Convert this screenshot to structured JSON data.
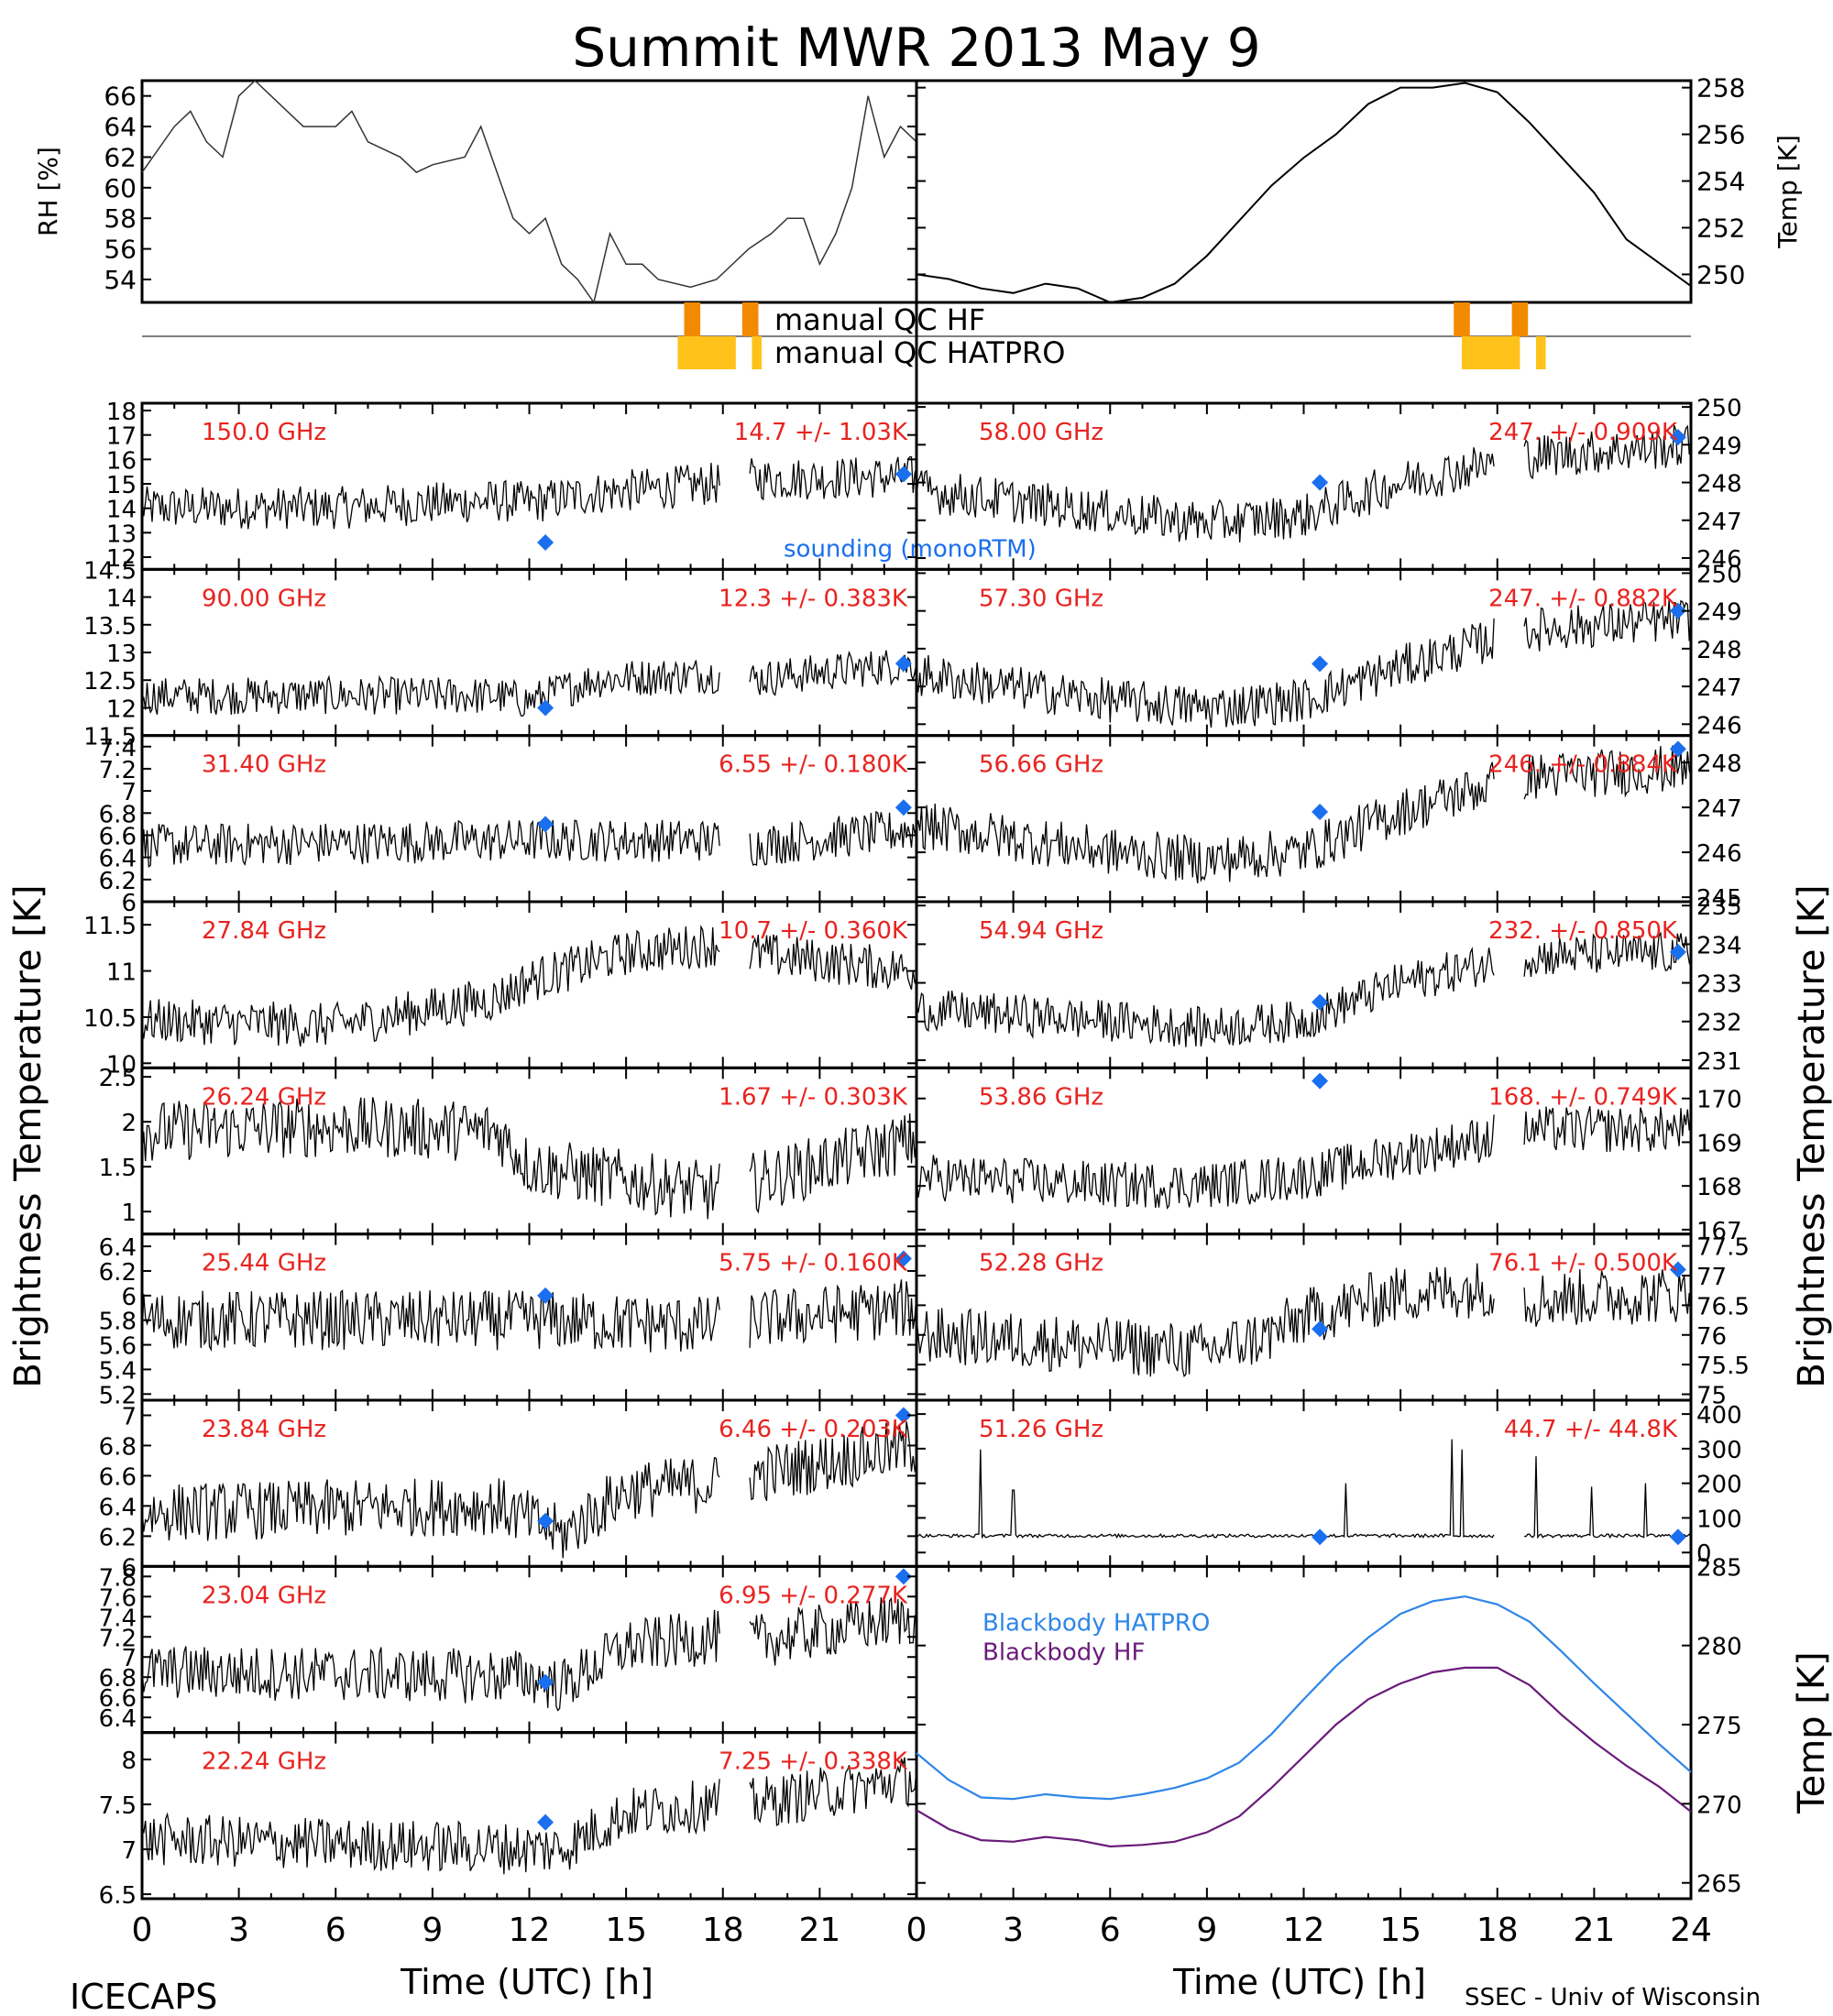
{
  "title": "Summit MWR 2013 May  9",
  "footer_left": "ICECAPS",
  "footer_right": "SSEC - Univ of Wisconsin",
  "colors": {
    "freq_label": "#e8231f",
    "sounding": "#1a6fee",
    "hatpro": "#2e86e8",
    "hf": "#6a1b7a",
    "qc_dark": "#f28a00",
    "qc_light": "#ffc21a"
  },
  "left_xaxis": {
    "label": "Time (UTC) [h]",
    "ticks": [
      0,
      3,
      6,
      9,
      12,
      15,
      18,
      21
    ],
    "range": [
      0,
      24
    ]
  },
  "right_xaxis": {
    "label": "Time (UTC) [h]",
    "ticks": [
      0,
      3,
      6,
      9,
      12,
      15,
      18,
      21,
      24
    ],
    "range": [
      0,
      24
    ]
  },
  "left_ylabel": "Brightness Temperature [K]",
  "right_ylabel": "Brightness Temperature [K]",
  "gap_hours": [
    17.9,
    18.8
  ],
  "rh_panel": {
    "ylabel": "RH [%]",
    "ylim": [
      52.5,
      67
    ],
    "ticks": [
      54,
      56,
      58,
      60,
      62,
      64,
      66
    ],
    "series": [
      [
        0,
        61
      ],
      [
        1,
        64
      ],
      [
        1.5,
        65
      ],
      [
        2,
        63
      ],
      [
        2.5,
        62
      ],
      [
        3,
        66
      ],
      [
        3.5,
        67
      ],
      [
        4,
        66
      ],
      [
        5,
        64
      ],
      [
        6,
        64
      ],
      [
        6.5,
        65
      ],
      [
        7,
        63
      ],
      [
        8,
        62
      ],
      [
        8.5,
        61
      ],
      [
        9,
        61.5
      ],
      [
        10,
        62
      ],
      [
        10.5,
        64
      ],
      [
        11,
        61
      ],
      [
        11.5,
        58
      ],
      [
        12,
        57
      ],
      [
        12.5,
        58
      ],
      [
        13,
        55
      ],
      [
        13.5,
        54
      ],
      [
        14,
        52.5
      ],
      [
        14.5,
        57
      ],
      [
        15,
        55
      ],
      [
        15.5,
        55
      ],
      [
        16,
        54
      ],
      [
        17,
        53.5
      ],
      [
        17.8,
        54
      ],
      [
        18.8,
        56
      ],
      [
        19.5,
        57
      ],
      [
        20,
        58
      ],
      [
        20.5,
        58
      ],
      [
        21,
        55
      ],
      [
        21.5,
        57
      ],
      [
        22,
        60
      ],
      [
        22.5,
        66
      ],
      [
        23,
        62
      ],
      [
        23.5,
        64
      ],
      [
        24,
        63
      ]
    ]
  },
  "temp_panel": {
    "ylabel": "Temp [K]",
    "ylim": [
      248.8,
      258.3
    ],
    "ticks": [
      250,
      252,
      254,
      256,
      258
    ],
    "series": [
      [
        0,
        250
      ],
      [
        1,
        249.8
      ],
      [
        2,
        249.4
      ],
      [
        3,
        249.2
      ],
      [
        4,
        249.6
      ],
      [
        5,
        249.4
      ],
      [
        6,
        248.8
      ],
      [
        7,
        249
      ],
      [
        8,
        249.6
      ],
      [
        9,
        250.8
      ],
      [
        10,
        252.3
      ],
      [
        11,
        253.8
      ],
      [
        12,
        255
      ],
      [
        13,
        256
      ],
      [
        14,
        257.3
      ],
      [
        15,
        258
      ],
      [
        16,
        258
      ],
      [
        17,
        258.2
      ],
      [
        18,
        257.8
      ],
      [
        19,
        256.5
      ],
      [
        20,
        255
      ],
      [
        21,
        253.5
      ],
      [
        22,
        251.5
      ],
      [
        23,
        250.5
      ],
      [
        24,
        249.5
      ]
    ]
  },
  "qc": {
    "hf_label": "manual  QC  HF",
    "hatpro_label": "manual  QC  HATPRO",
    "hf_blocks": [
      [
        16.8,
        17.3
      ],
      [
        18.6,
        19.1
      ]
    ],
    "hatpro_blocks": [
      [
        16.6,
        18.4
      ],
      [
        18.9,
        19.2
      ]
    ]
  },
  "sounding_label": "sounding (monoRTM)",
  "left_channels": [
    {
      "freq": "150.0 GHz",
      "stats": "14.7 +/- 1.03K",
      "ylim": [
        11.5,
        18.3
      ],
      "ticks": [
        12,
        13,
        14,
        15,
        16,
        17,
        18
      ],
      "base": [
        [
          0,
          14
        ],
        [
          6,
          14
        ],
        [
          11,
          14.3
        ],
        [
          12,
          14.2
        ],
        [
          14,
          14.6
        ],
        [
          17.7,
          15
        ],
        [
          18.8,
          15.2
        ],
        [
          24,
          15.3
        ]
      ],
      "noise": 0.9,
      "soundings": [
        [
          12.5,
          12.6
        ],
        [
          23.6,
          15.4
        ]
      ]
    },
    {
      "freq": "90.00 GHz",
      "stats": "12.3 +/- 0.383K",
      "ylim": [
        11.5,
        14.5
      ],
      "ticks": [
        11.5,
        12.0,
        12.5,
        13.0,
        13.5,
        14.0,
        14.5
      ],
      "base": [
        [
          0,
          12.2
        ],
        [
          11,
          12.2
        ],
        [
          12,
          12.1
        ],
        [
          14,
          12.5
        ],
        [
          17.7,
          12.6
        ],
        [
          18.8,
          12.5
        ],
        [
          24,
          12.8
        ]
      ],
      "noise": 0.35,
      "soundings": [
        [
          12.5,
          12.0
        ],
        [
          23.6,
          12.8
        ]
      ]
    },
    {
      "freq": "31.40 GHz",
      "stats": "6.55 +/- 0.180K",
      "ylim": [
        6.0,
        7.5
      ],
      "ticks": [
        6.0,
        6.2,
        6.4,
        6.6,
        6.8,
        7.0,
        7.2,
        7.4
      ],
      "base": [
        [
          0,
          6.5
        ],
        [
          12,
          6.55
        ],
        [
          17.7,
          6.55
        ],
        [
          18.8,
          6.5
        ],
        [
          24,
          6.65
        ]
      ],
      "noise": 0.2,
      "soundings": [
        [
          12.5,
          6.7
        ],
        [
          23.6,
          6.85
        ]
      ]
    },
    {
      "freq": "27.84 GHz",
      "stats": "10.7 +/- 0.360K",
      "ylim": [
        9.95,
        11.75
      ],
      "ticks": [
        10.0,
        10.5,
        11.0,
        11.5
      ],
      "base": [
        [
          0,
          10.45
        ],
        [
          6,
          10.4
        ],
        [
          11,
          10.7
        ],
        [
          12,
          10.9
        ],
        [
          15,
          11.2
        ],
        [
          17.7,
          11.3
        ],
        [
          18.8,
          11.2
        ],
        [
          24,
          11.0
        ]
      ],
      "noise": 0.25,
      "soundings": []
    },
    {
      "freq": "26.24 GHz",
      "stats": "1.67 +/- 0.303K",
      "ylim": [
        0.75,
        2.6
      ],
      "ticks": [
        1.0,
        1.5,
        2.0,
        2.5
      ],
      "base": [
        [
          0,
          1.9
        ],
        [
          6,
          1.95
        ],
        [
          11,
          1.9
        ],
        [
          12,
          1.5
        ],
        [
          17.7,
          1.2
        ],
        [
          18.8,
          1.3
        ],
        [
          24,
          1.8
        ]
      ],
      "noise": 0.35,
      "soundings": []
    },
    {
      "freq": "25.44 GHz",
      "stats": "5.75 +/- 0.160K",
      "ylim": [
        5.15,
        6.5
      ],
      "ticks": [
        5.2,
        5.4,
        5.6,
        5.8,
        6.0,
        6.2,
        6.4
      ],
      "base": [
        [
          0,
          5.8
        ],
        [
          12,
          5.8
        ],
        [
          17.7,
          5.75
        ],
        [
          18.8,
          5.8
        ],
        [
          24,
          5.9
        ]
      ],
      "noise": 0.25,
      "soundings": [
        [
          12.5,
          6.0
        ],
        [
          23.6,
          6.3
        ]
      ]
    },
    {
      "freq": "23.84 GHz",
      "stats": "6.46 +/- 0.203K",
      "ylim": [
        6.0,
        7.1
      ],
      "ticks": [
        6.0,
        6.2,
        6.4,
        6.6,
        6.8,
        7.0
      ],
      "base": [
        [
          0,
          6.35
        ],
        [
          11,
          6.4
        ],
        [
          13,
          6.2
        ],
        [
          15,
          6.5
        ],
        [
          17.7,
          6.55
        ],
        [
          18.8,
          6.6
        ],
        [
          24,
          6.8
        ]
      ],
      "noise": 0.2,
      "soundings": [
        [
          12.5,
          6.3
        ],
        [
          23.6,
          7.0
        ]
      ]
    },
    {
      "freq": "23.04 GHz",
      "stats": "6.95 +/- 0.277K",
      "ylim": [
        6.25,
        7.9
      ],
      "ticks": [
        6.4,
        6.6,
        6.8,
        7.0,
        7.2,
        7.4,
        7.6,
        7.8
      ],
      "base": [
        [
          0,
          6.85
        ],
        [
          12,
          6.8
        ],
        [
          13,
          6.7
        ],
        [
          15,
          7.1
        ],
        [
          17.7,
          7.2
        ],
        [
          18.8,
          7.15
        ],
        [
          24,
          7.4
        ]
      ],
      "noise": 0.28,
      "soundings": [
        [
          12.5,
          6.75
        ],
        [
          23.6,
          7.8
        ]
      ]
    },
    {
      "freq": "22.24 GHz",
      "stats": "7.25 +/- 0.338K",
      "ylim": [
        6.45,
        8.3
      ],
      "ticks": [
        6.5,
        7.0,
        7.5,
        8.0
      ],
      "base": [
        [
          0,
          7.1
        ],
        [
          12,
          7.0
        ],
        [
          13,
          7.0
        ],
        [
          15,
          7.4
        ],
        [
          17.7,
          7.5
        ],
        [
          18.8,
          7.5
        ],
        [
          24,
          7.8
        ]
      ],
      "noise": 0.3,
      "soundings": [
        [
          12.5,
          7.3
        ]
      ]
    }
  ],
  "right_channels": [
    {
      "freq": "58.00 GHz",
      "stats": "247. +/- 0.909K",
      "ylim": [
        245.7,
        250.1
      ],
      "ticks": [
        246,
        247,
        248,
        249,
        250
      ],
      "base": [
        [
          0,
          247.8
        ],
        [
          6,
          247.2
        ],
        [
          9,
          246.9
        ],
        [
          12,
          247.1
        ],
        [
          15,
          248
        ],
        [
          17.7,
          248.5
        ],
        [
          18.8,
          248.7
        ],
        [
          24,
          249
        ]
      ],
      "noise": 0.6,
      "soundings": [
        [
          12.5,
          248
        ],
        [
          23.6,
          249.2
        ]
      ]
    },
    {
      "freq": "57.30 GHz",
      "stats": "247. +/- 0.882K",
      "ylim": [
        245.7,
        250.1
      ],
      "ticks": [
        246,
        247,
        248,
        249,
        250
      ],
      "base": [
        [
          0,
          247.3
        ],
        [
          6,
          246.6
        ],
        [
          9,
          246.4
        ],
        [
          12,
          246.6
        ],
        [
          15,
          247.5
        ],
        [
          17.7,
          248.2
        ],
        [
          18.8,
          248.5
        ],
        [
          24,
          248.8
        ]
      ],
      "noise": 0.6,
      "soundings": [
        [
          12.5,
          247.6
        ],
        [
          23.6,
          249
        ]
      ]
    },
    {
      "freq": "56.66 GHz",
      "stats": "246. +/- 0.884K",
      "ylim": [
        244.9,
        248.6
      ],
      "ticks": [
        245,
        246,
        247,
        248
      ],
      "base": [
        [
          0,
          246.6
        ],
        [
          6,
          246
        ],
        [
          9,
          245.8
        ],
        [
          12,
          246
        ],
        [
          15,
          246.9
        ],
        [
          17.7,
          247.5
        ],
        [
          18.8,
          247.7
        ],
        [
          24,
          247.9
        ]
      ],
      "noise": 0.55,
      "soundings": [
        [
          12.5,
          246.9
        ],
        [
          23.6,
          248.3
        ]
      ]
    },
    {
      "freq": "54.94 GHz",
      "stats": "232. +/- 0.850K",
      "ylim": [
        230.8,
        235.1
      ],
      "ticks": [
        231,
        232,
        233,
        234,
        235
      ],
      "base": [
        [
          0,
          232.3
        ],
        [
          6,
          232
        ],
        [
          9,
          231.8
        ],
        [
          12,
          232
        ],
        [
          15,
          233
        ],
        [
          17.7,
          233.5
        ],
        [
          18.8,
          233.7
        ],
        [
          24,
          233.8
        ]
      ],
      "noise": 0.55,
      "soundings": [
        [
          12.5,
          232.5
        ],
        [
          23.6,
          233.8
        ]
      ]
    },
    {
      "freq": "53.86 GHz",
      "stats": "168. +/- 0.749K",
      "ylim": [
        166.9,
        170.7
      ],
      "ticks": [
        167,
        168,
        169,
        170
      ],
      "base": [
        [
          0,
          168.2
        ],
        [
          6,
          168
        ],
        [
          9,
          168
        ],
        [
          12,
          168.2
        ],
        [
          15,
          168.7
        ],
        [
          17.7,
          169.1
        ],
        [
          18.8,
          169.3
        ],
        [
          24,
          169.3
        ]
      ],
      "noise": 0.55,
      "soundings": [
        [
          12.5,
          170.4
        ]
      ]
    },
    {
      "freq": "52.28 GHz",
      "stats": "76.1 +/- 0.500K",
      "ylim": [
        74.9,
        77.7
      ],
      "ticks": [
        75.0,
        75.5,
        76.0,
        76.5,
        77.0,
        77.5
      ],
      "base": [
        [
          0,
          76
        ],
        [
          6,
          75.8
        ],
        [
          9,
          75.7
        ],
        [
          11,
          76
        ],
        [
          12,
          76.3
        ],
        [
          15,
          76.7
        ],
        [
          17.7,
          76.8
        ],
        [
          18.8,
          76.6
        ],
        [
          24,
          76.7
        ]
      ],
      "noise": 0.5,
      "soundings": [
        [
          12.5,
          76.1
        ],
        [
          23.6,
          77.1
        ]
      ]
    },
    {
      "freq": "51.26 GHz",
      "stats": "44.7 +/- 44.8K",
      "ylim": [
        -40,
        440
      ],
      "ticks": [
        0,
        100,
        200,
        300,
        400
      ],
      "base": [
        [
          0,
          45
        ],
        [
          24,
          45
        ]
      ],
      "noise": 5,
      "spikes": [
        [
          2,
          300
        ],
        [
          3,
          180
        ],
        [
          13.3,
          200
        ],
        [
          16.6,
          330
        ],
        [
          16.9,
          300
        ],
        [
          19.2,
          280
        ],
        [
          20.9,
          190
        ],
        [
          22.6,
          200
        ]
      ],
      "soundings": [
        [
          12.5,
          45
        ],
        [
          23.6,
          45
        ]
      ]
    }
  ],
  "blackbody_panel": {
    "ylabel": "Temp [K]",
    "ylim": [
      264,
      285
    ],
    "ticks": [
      265,
      270,
      275,
      280,
      285
    ],
    "series": [
      {
        "name": "Blackbody HATPRO",
        "color": "#2e86e8",
        "values": [
          [
            0,
            273.2
          ],
          [
            1,
            271.5
          ],
          [
            2,
            270.4
          ],
          [
            3,
            270.3
          ],
          [
            4,
            270.6
          ],
          [
            5,
            270.4
          ],
          [
            6,
            270.3
          ],
          [
            7,
            270.6
          ],
          [
            8,
            271
          ],
          [
            9,
            271.6
          ],
          [
            10,
            272.6
          ],
          [
            11,
            274.4
          ],
          [
            12,
            276.6
          ],
          [
            13,
            278.7
          ],
          [
            14,
            280.5
          ],
          [
            15,
            282
          ],
          [
            16,
            282.8
          ],
          [
            17,
            283.1
          ],
          [
            18,
            282.6
          ],
          [
            19,
            281.5
          ],
          [
            20,
            279.6
          ],
          [
            21,
            277.6
          ],
          [
            22,
            275.7
          ],
          [
            23,
            273.8
          ],
          [
            24,
            272
          ]
        ]
      },
      {
        "name": "Blackbody HF",
        "color": "#6a1b7a",
        "values": [
          [
            0,
            269.6
          ],
          [
            1,
            268.4
          ],
          [
            2,
            267.7
          ],
          [
            3,
            267.6
          ],
          [
            4,
            267.9
          ],
          [
            5,
            267.7
          ],
          [
            6,
            267.3
          ],
          [
            7,
            267.4
          ],
          [
            8,
            267.6
          ],
          [
            9,
            268.2
          ],
          [
            10,
            269.2
          ],
          [
            11,
            271
          ],
          [
            12,
            273
          ],
          [
            13,
            275
          ],
          [
            14,
            276.6
          ],
          [
            15,
            277.6
          ],
          [
            16,
            278.3
          ],
          [
            17,
            278.6
          ],
          [
            18,
            278.6
          ],
          [
            19,
            277.5
          ],
          [
            20,
            275.6
          ],
          [
            21,
            273.9
          ],
          [
            22,
            272.4
          ],
          [
            23,
            271.1
          ],
          [
            24,
            269.5
          ]
        ]
      }
    ]
  }
}
